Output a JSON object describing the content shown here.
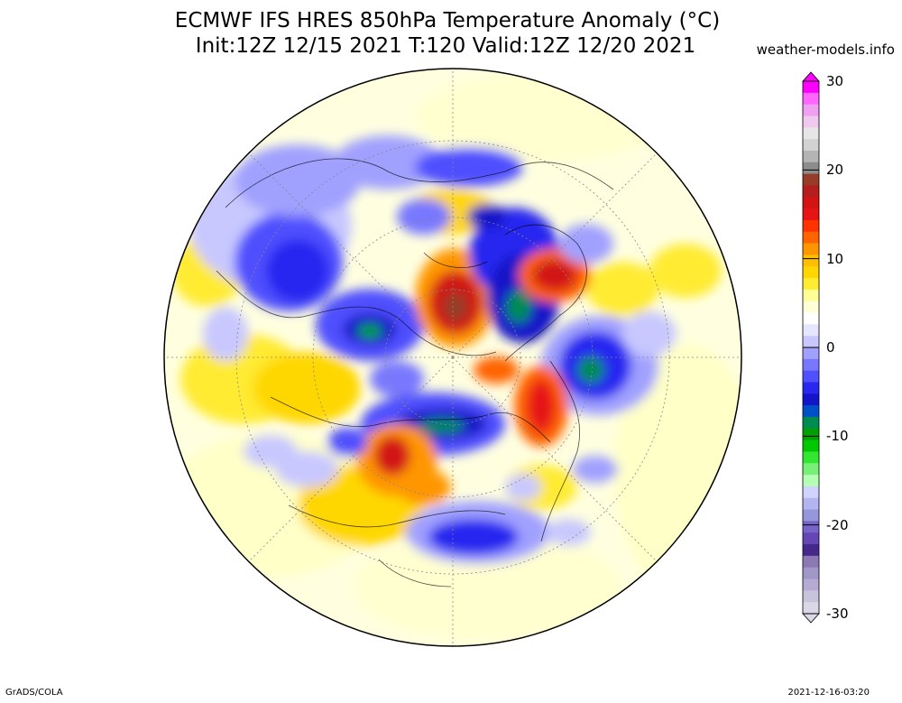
{
  "header": {
    "title_line1": "ECMWF IFS HRES 850hPa Temperature Anomaly (°C)",
    "title_line2": "Init:12Z 12/15 2021 T:120 Valid:12Z 12/20 2021",
    "site": "weather-models.info"
  },
  "footer": {
    "credit": "GrADS/COLA",
    "timestamp": "2021-12-16-03:20"
  },
  "colorbar": {
    "labels": [
      "30",
      "20",
      "10",
      "0",
      "-10",
      "-20",
      "-30"
    ],
    "colors": [
      "#ff00ff",
      "#ff66ff",
      "#f0a0f0",
      "#f0c8f0",
      "#e6e6e6",
      "#d2d2d2",
      "#b4b4b4",
      "#8c8c8c",
      "#963c28",
      "#b41e1e",
      "#d21414",
      "#e61414",
      "#ff3200",
      "#ff6400",
      "#ff9600",
      "#ffbe00",
      "#ffd700",
      "#ffeb32",
      "#ffff96",
      "#ffffd7",
      "#ffffff",
      "#e6e6ff",
      "#c8c8ff",
      "#a0a0ff",
      "#7878ff",
      "#5050ff",
      "#2828f0",
      "#1414c8",
      "#0050c8",
      "#008c50",
      "#00a000",
      "#00c800",
      "#32e632",
      "#78f078",
      "#b4ffb4",
      "#d2d2ff",
      "#b4b4f0",
      "#9696dc",
      "#7864c8",
      "#6446b4",
      "#46288c",
      "#8c78b4",
      "#a096c8",
      "#b4aad2",
      "#c8c3dc",
      "#dcd7e6"
    ]
  },
  "map_regions": [
    {
      "name": "greenland-cold",
      "color": "#2828f0",
      "level": -8
    },
    {
      "name": "alaska-warm",
      "color": "#d21414",
      "level": 14
    },
    {
      "name": "siberia-cold",
      "color": "#1414c8",
      "level": -10
    },
    {
      "name": "europe-warm",
      "color": "#e61414",
      "level": 12
    },
    {
      "name": "pacific-cold",
      "color": "#1414c8",
      "level": -10
    },
    {
      "name": "north-america-cold",
      "color": "#2828f0",
      "level": -8
    },
    {
      "name": "atlantic-cold",
      "color": "#0050c8",
      "level": -10
    }
  ]
}
